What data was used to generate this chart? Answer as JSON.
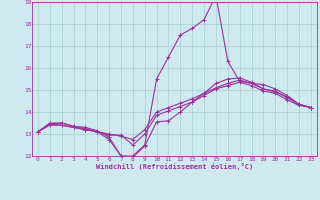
{
  "title": "",
  "xlabel": "Windchill (Refroidissement éolien,°C)",
  "ylabel": "",
  "background_color": "#cee9f0",
  "grid_color": "#a8cdd4",
  "line_color": "#993399",
  "xlim": [
    -0.5,
    23.5
  ],
  "ylim": [
    12,
    19
  ],
  "yticks": [
    12,
    13,
    14,
    15,
    16,
    17,
    18,
    19
  ],
  "xticks": [
    0,
    1,
    2,
    3,
    4,
    5,
    6,
    7,
    8,
    9,
    10,
    11,
    12,
    13,
    14,
    15,
    16,
    17,
    18,
    19,
    20,
    21,
    22,
    23
  ],
  "hours": [
    0,
    1,
    2,
    3,
    4,
    5,
    6,
    7,
    8,
    9,
    10,
    11,
    12,
    13,
    14,
    15,
    16,
    17,
    18,
    19,
    20,
    21,
    22,
    23
  ],
  "line_spike": [
    13.1,
    13.5,
    13.5,
    13.35,
    13.3,
    13.15,
    12.85,
    12.0,
    12.0,
    12.5,
    15.5,
    16.5,
    17.5,
    17.8,
    18.2,
    19.3,
    16.3,
    15.4,
    15.3,
    15.25,
    15.05,
    14.75,
    14.35,
    14.2
  ],
  "line_low": [
    13.1,
    13.45,
    13.5,
    13.35,
    13.25,
    13.1,
    12.75,
    12.0,
    11.95,
    12.45,
    13.55,
    13.6,
    14.0,
    14.45,
    14.85,
    15.3,
    15.5,
    15.55,
    15.35,
    15.05,
    14.9,
    14.7,
    14.35,
    14.2
  ],
  "line_mid1": [
    13.1,
    13.45,
    13.4,
    13.3,
    13.2,
    13.1,
    12.95,
    12.95,
    12.5,
    13.0,
    13.85,
    14.05,
    14.25,
    14.45,
    14.75,
    15.05,
    15.2,
    15.35,
    15.2,
    14.95,
    14.85,
    14.55,
    14.3,
    14.2
  ],
  "line_mid2": [
    13.1,
    13.4,
    13.4,
    13.3,
    13.2,
    13.1,
    13.0,
    12.9,
    12.75,
    13.2,
    14.0,
    14.2,
    14.4,
    14.6,
    14.85,
    15.1,
    15.3,
    15.45,
    15.3,
    15.05,
    14.95,
    14.65,
    14.35,
    14.2
  ]
}
